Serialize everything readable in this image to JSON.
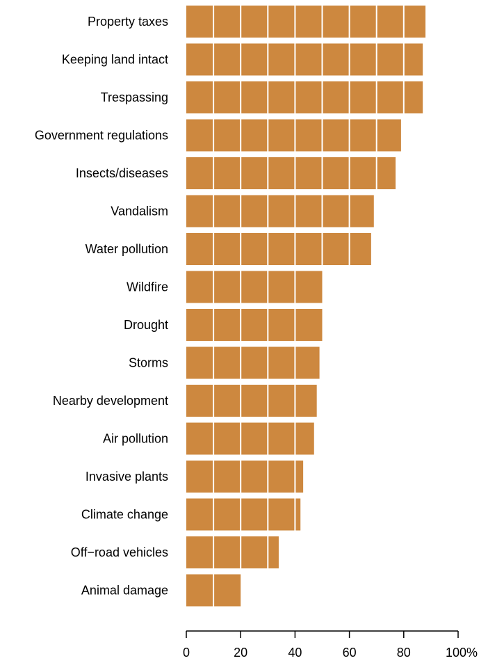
{
  "chart_data": {
    "type": "bar",
    "orientation": "horizontal",
    "title": "",
    "xlabel": "",
    "ylabel": "",
    "categories": [
      "Property taxes",
      "Keeping land intact",
      "Trespassing",
      "Government regulations",
      "Insects/diseases",
      "Vandalism",
      "Water pollution",
      "Wildfire",
      "Drought",
      "Storms",
      "Nearby development",
      "Air pollution",
      "Invasive plants",
      "Climate change",
      "Off−road vehicles",
      "Animal damage"
    ],
    "values": [
      88,
      87,
      87,
      79,
      77,
      69,
      68,
      50,
      50,
      49,
      48,
      47,
      43,
      42,
      34,
      20
    ],
    "xlim": [
      0,
      100
    ],
    "x_ticks": [
      0,
      20,
      40,
      60,
      80,
      100
    ],
    "x_tick_labels": [
      "0",
      "20",
      "40",
      "60",
      "80",
      "100%"
    ],
    "gridlines_every": 10,
    "bar_color": "#CD883F",
    "grid_color": "#FFFFFF",
    "grid": "vertical white lines over bars"
  }
}
